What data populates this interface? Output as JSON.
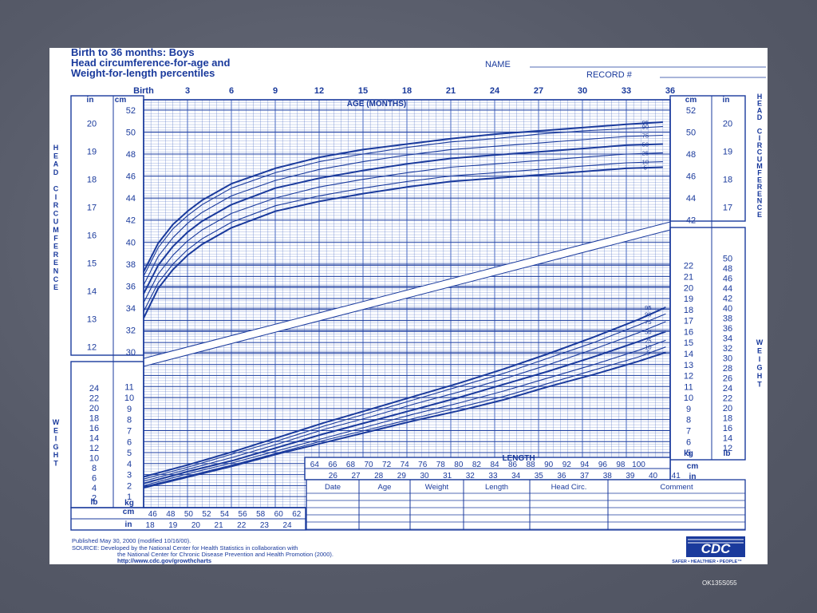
{
  "title_lines": [
    "Birth to 36 months: Boys",
    "Head circumference-for-age and",
    "Weight-for-length percentiles"
  ],
  "name_label": "NAME",
  "record_label": "RECORD #",
  "age_axis_title": "AGE (MONTHS)",
  "length_axis_title": "LENGTH",
  "hc_side_label": "HEAD CIRCUMFERENCE",
  "wt_side_label": "WEIGHT",
  "unit_labels": {
    "in": "in",
    "cm": "cm",
    "kg": "kg",
    "lb": "lb"
  },
  "table_headers": [
    "Date",
    "Age",
    "Weight",
    "Length",
    "Head Circ.",
    "Comment"
  ],
  "footer": {
    "published": "Published May 30, 2000 (modified 10/16/00).",
    "source1": "SOURCE: Developed by the National Center for Health Statistics in collaboration with",
    "source2": "the National Center for Chronic Disease Prevention and Health Promotion (2000).",
    "url": "http://www.cdc.gov/growthcharts"
  },
  "logo_text": "CDC",
  "logo_tagline": "SAFER • HEALTHIER • PEOPLE™",
  "slide_code": "OK135S055",
  "colors": {
    "ink": "#1a3a9c",
    "grid": "#5a78c8",
    "slide_bg": "#5b5f6e",
    "paper": "#ffffff"
  },
  "chart_data": [
    {
      "type": "line",
      "title": "Head circumference-for-age",
      "xlabel": "AGE (MONTHS)",
      "ylabel": "HEAD CIRCUMFERENCE",
      "xlim": [
        0,
        36
      ],
      "ylim": [
        29,
        53
      ],
      "x_ticks": [
        "Birth",
        "3",
        "6",
        "9",
        "12",
        "15",
        "18",
        "21",
        "24",
        "27",
        "30",
        "33",
        "36"
      ],
      "y_ticks_cm": [
        30,
        32,
        34,
        36,
        38,
        40,
        42,
        44,
        46,
        48,
        50,
        52
      ],
      "y_ticks_in": [
        12,
        13,
        14,
        15,
        16,
        17,
        18,
        19,
        20
      ],
      "x": [
        0,
        1,
        2,
        3,
        4,
        6,
        9,
        12,
        15,
        18,
        21,
        24,
        27,
        30,
        33,
        35.5
      ],
      "series": [
        {
          "name": "95",
          "values": [
            37.3,
            39.9,
            41.6,
            42.8,
            43.8,
            45.3,
            46.7,
            47.7,
            48.4,
            48.9,
            49.4,
            49.8,
            50.1,
            50.4,
            50.7,
            50.9
          ]
        },
        {
          "name": "90",
          "values": [
            36.9,
            39.5,
            41.2,
            42.4,
            43.4,
            44.9,
            46.3,
            47.3,
            48.0,
            48.6,
            49.1,
            49.4,
            49.8,
            50.1,
            50.3,
            50.5
          ]
        },
        {
          "name": "75",
          "values": [
            36.1,
            38.7,
            40.4,
            41.7,
            42.7,
            44.2,
            45.6,
            46.6,
            47.3,
            47.9,
            48.4,
            48.7,
            49.0,
            49.3,
            49.6,
            49.7
          ]
        },
        {
          "name": "50",
          "values": [
            35.3,
            37.9,
            39.6,
            40.9,
            41.9,
            43.4,
            44.9,
            45.8,
            46.5,
            47.1,
            47.6,
            47.9,
            48.2,
            48.5,
            48.8,
            48.9
          ]
        },
        {
          "name": "25",
          "values": [
            34.5,
            37.1,
            38.8,
            40.1,
            41.1,
            42.6,
            44.0,
            45.0,
            45.7,
            46.3,
            46.8,
            47.1,
            47.4,
            47.7,
            48.0,
            48.1
          ]
        },
        {
          "name": "10",
          "values": [
            33.7,
            36.3,
            38.0,
            39.3,
            40.3,
            41.8,
            43.3,
            44.2,
            44.9,
            45.5,
            46.0,
            46.3,
            46.6,
            46.9,
            47.2,
            47.3
          ]
        },
        {
          "name": "5",
          "values": [
            33.1,
            35.8,
            37.5,
            38.8,
            39.8,
            41.3,
            42.8,
            43.7,
            44.4,
            45.0,
            45.5,
            45.8,
            46.1,
            46.4,
            46.7,
            46.8
          ]
        }
      ]
    },
    {
      "type": "line",
      "title": "Weight-for-length",
      "xlabel": "LENGTH",
      "ylabel": "WEIGHT",
      "xlim": [
        45,
        103.5
      ],
      "ylim": [
        0,
        23.5
      ],
      "x_ticks_cm": [
        46,
        48,
        50,
        52,
        54,
        56,
        58,
        60,
        62,
        64,
        66,
        68,
        70,
        72,
        74,
        76,
        78,
        80,
        82,
        84,
        86,
        88,
        90,
        92,
        94,
        96,
        98,
        100
      ],
      "x_ticks_in": [
        18,
        19,
        20,
        21,
        22,
        23,
        24,
        26,
        27,
        28,
        29,
        30,
        31,
        32,
        33,
        34,
        35,
        36,
        37,
        38,
        39,
        40,
        41
      ],
      "y_ticks_kg": [
        1,
        2,
        3,
        4,
        5,
        6,
        7,
        8,
        9,
        10,
        11,
        12,
        13,
        14,
        15,
        16,
        17,
        18,
        19,
        20,
        21,
        22
      ],
      "y_ticks_lb_left": [
        2,
        4,
        6,
        8,
        10,
        12,
        14,
        16,
        18,
        20,
        22,
        24
      ],
      "y_ticks_lb_right": [
        12,
        14,
        16,
        18,
        20,
        22,
        24,
        26,
        28,
        30,
        32,
        34,
        36,
        38,
        40,
        42,
        44,
        46,
        48,
        50
      ],
      "x": [
        45,
        50,
        55,
        60,
        65,
        70,
        75,
        80,
        85,
        90,
        95,
        100,
        103
      ],
      "series": [
        {
          "name": "95",
          "values": [
            2.8,
            3.9,
            5.1,
            6.4,
            7.7,
            8.9,
            10.1,
            11.3,
            12.6,
            14.0,
            15.5,
            17.1,
            18.2
          ]
        },
        {
          "name": "90",
          "values": [
            2.6,
            3.7,
            4.9,
            6.1,
            7.4,
            8.6,
            9.8,
            11.0,
            12.2,
            13.6,
            15.0,
            16.6,
            17.6
          ]
        },
        {
          "name": "75",
          "values": [
            2.4,
            3.5,
            4.6,
            5.8,
            7.1,
            8.2,
            9.4,
            10.5,
            11.7,
            13.0,
            14.4,
            15.9,
            16.9
          ]
        },
        {
          "name": "50",
          "values": [
            2.2,
            3.3,
            4.3,
            5.5,
            6.7,
            7.8,
            8.9,
            10.0,
            11.2,
            12.4,
            13.7,
            15.1,
            16.0
          ]
        },
        {
          "name": "25",
          "values": [
            2.0,
            3.1,
            4.1,
            5.2,
            6.3,
            7.4,
            8.5,
            9.5,
            10.6,
            11.8,
            13.0,
            14.3,
            15.2
          ]
        },
        {
          "name": "10",
          "values": [
            1.9,
            2.9,
            3.9,
            5.0,
            6.1,
            7.1,
            8.1,
            9.1,
            10.1,
            11.3,
            12.5,
            13.7,
            14.6
          ]
        },
        {
          "name": "5",
          "values": [
            1.8,
            2.8,
            3.8,
            4.9,
            5.9,
            6.9,
            7.9,
            8.8,
            9.8,
            11.0,
            12.1,
            13.3,
            14.1
          ]
        }
      ]
    }
  ]
}
